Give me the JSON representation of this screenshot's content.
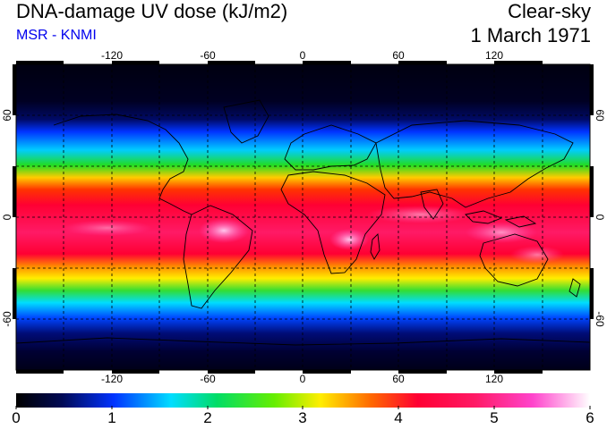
{
  "header": {
    "title": "DNA-damage UV dose (kJ/m2)",
    "source": "MSR - KNMI",
    "condition": "Clear-sky",
    "date": "1 March 1971"
  },
  "map": {
    "lon_ticks": [
      "-120",
      "-60",
      "0",
      "60",
      "120"
    ],
    "lat_ticks": [
      "60",
      "0",
      "-60"
    ],
    "colors": {
      "ocean_dark": "#00002a",
      "coastline": "#000000",
      "grid": "#000000"
    }
  },
  "colorbar": {
    "labels": [
      "0",
      "1",
      "2",
      "3",
      "4",
      "5",
      "6"
    ],
    "stops": [
      "#000000",
      "#001166",
      "#0044ff",
      "#00e5ff",
      "#22dd22",
      "#ffee00",
      "#ff6600",
      "#ff0033",
      "#ff3377",
      "#ff33cc",
      "#ffffff"
    ]
  }
}
